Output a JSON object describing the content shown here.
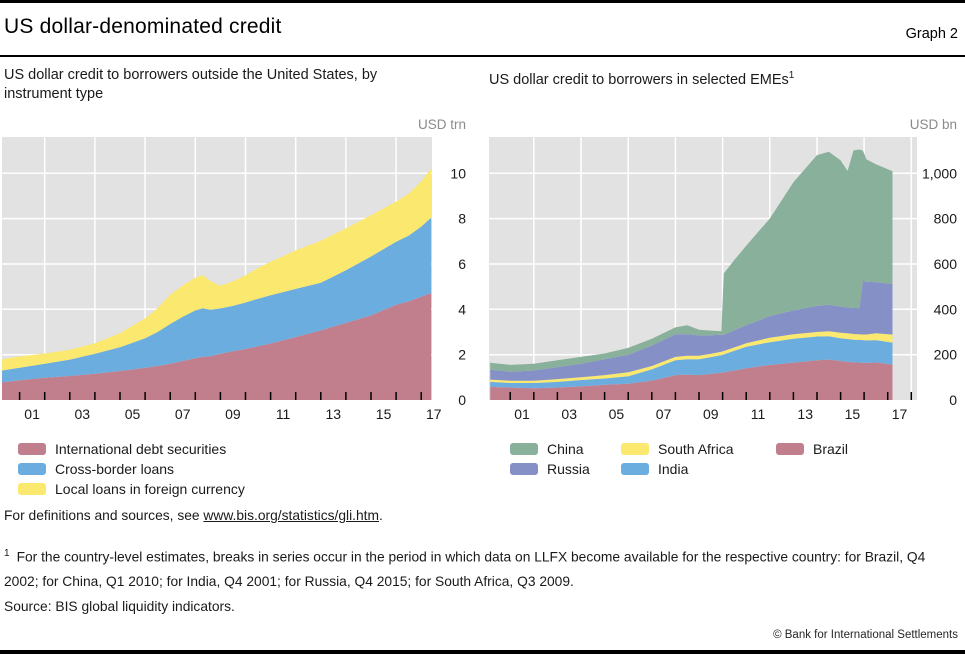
{
  "page": {
    "title": "US dollar-denominated credit",
    "graph_label": "Graph 2",
    "definitions_line": {
      "prefix": "For definitions and sources, see ",
      "link_text": "www.bis.org/statistics/gli.htm",
      "suffix": "."
    },
    "footnote": {
      "marker": "1",
      "text": "For the country-level estimates, breaks in series occur in the period in which data on LLFX become available for the respective country: for Brazil, Q4 2002; for China, Q1 2010; for India, Q4 2001; for Russia, Q4 2015; for South Africa, Q3 2009."
    },
    "source_line": "Source: BIS global liquidity indicators.",
    "copyright": "© Bank for International Settlements"
  },
  "colors": {
    "panel_background": "#e2e2e2",
    "gridline": "#ffffff",
    "tick": "#000000",
    "unit_text": "#8a8a8a"
  },
  "chart_data": [
    {
      "type": "area",
      "stacked": true,
      "title": "US dollar credit to borrowers outside the United States, by instrument type",
      "unit_label": "USD trn",
      "grid": true,
      "legend_position": "bottom-left",
      "ylim": [
        0,
        11.6
      ],
      "yticks": [
        0,
        2,
        4,
        6,
        8,
        10
      ],
      "ytick_labels": [
        "0",
        "2",
        "4",
        "6",
        "8",
        "10"
      ],
      "xtick_label_years": [
        2001,
        2003,
        2005,
        2007,
        2009,
        2011,
        2013,
        2015,
        2017
      ],
      "xtick_labels": [
        "01",
        "03",
        "05",
        "07",
        "09",
        "11",
        "13",
        "15",
        "17"
      ],
      "x": [
        2000.3,
        2001,
        2002,
        2003,
        2004,
        2005,
        2006,
        2006.5,
        2007,
        2007.5,
        2008,
        2008.3,
        2008.6,
        2009,
        2009.5,
        2010,
        2010.5,
        2011,
        2012,
        2013,
        2014,
        2015,
        2016,
        2016.5,
        2017,
        2017.4
      ],
      "series": [
        {
          "name": "International debt securities",
          "color": "#c17f8e",
          "values": [
            0.78,
            0.87,
            0.98,
            1.06,
            1.16,
            1.28,
            1.42,
            1.5,
            1.6,
            1.72,
            1.85,
            1.9,
            1.93,
            2.04,
            2.15,
            2.25,
            2.37,
            2.49,
            2.78,
            3.07,
            3.4,
            3.73,
            4.2,
            4.35,
            4.55,
            4.72
          ]
        },
        {
          "name": "Cross-border loans",
          "color": "#6badde",
          "values": [
            0.52,
            0.55,
            0.62,
            0.72,
            0.88,
            1.05,
            1.3,
            1.5,
            1.75,
            1.95,
            2.1,
            2.15,
            2.05,
            2.0,
            2.0,
            2.05,
            2.1,
            2.13,
            2.12,
            2.1,
            2.32,
            2.6,
            2.78,
            2.9,
            3.1,
            3.33
          ]
        },
        {
          "name": "Local loans in foreign currency",
          "color": "#fbe86f",
          "values": [
            0.5,
            0.5,
            0.45,
            0.44,
            0.46,
            0.62,
            0.88,
            1.05,
            1.3,
            1.38,
            1.45,
            1.45,
            1.27,
            1.0,
            1.08,
            1.2,
            1.35,
            1.48,
            1.7,
            1.85,
            1.85,
            1.82,
            1.77,
            1.85,
            2.0,
            2.15
          ]
        }
      ]
    },
    {
      "type": "area",
      "stacked": true,
      "title": "US dollar credit to borrowers in selected EMEs",
      "title_superscript": "1",
      "unit_label": "USD bn",
      "grid": true,
      "legend_position": "bottom-left",
      "ylim": [
        0,
        1160
      ],
      "yticks": [
        0,
        200,
        400,
        600,
        800,
        1000
      ],
      "ytick_labels": [
        "0",
        "200",
        "400",
        "600",
        "800",
        "1,000"
      ],
      "xtick_label_years": [
        2001,
        2003,
        2005,
        2007,
        2009,
        2011,
        2013,
        2015,
        2017
      ],
      "xtick_labels": [
        "01",
        "03",
        "05",
        "07",
        "09",
        "11",
        "13",
        "15",
        "17"
      ],
      "x": [
        2000.15,
        2001,
        2002,
        2003,
        2004,
        2005,
        2006,
        2007,
        2008,
        2008.5,
        2009,
        2009.5,
        2009.95,
        2010.05,
        2010.5,
        2011,
        2012,
        2013,
        2014,
        2014.5,
        2015,
        2015.3,
        2015.55,
        2015.8,
        2015.95,
        2016.1,
        2016.5,
        2017.2
      ],
      "series": [
        {
          "name": "Brazil",
          "color": "#c17f8e",
          "values": [
            58,
            55,
            52,
            55,
            60,
            67,
            72,
            85,
            110,
            112,
            110,
            115,
            120,
            122,
            130,
            140,
            155,
            165,
            175,
            178,
            172,
            169,
            166,
            165,
            164,
            163,
            166,
            156
          ]
        },
        {
          "name": "India",
          "color": "#6badde",
          "values": [
            22,
            20,
            23,
            25,
            28,
            28,
            33,
            50,
            65,
            68,
            70,
            74,
            78,
            79,
            87,
            95,
            100,
            105,
            105,
            103,
            100,
            100,
            100,
            100,
            100,
            100,
            98,
            97
          ]
        },
        {
          "name": "South Africa",
          "color": "#fbe86f",
          "values": [
            10,
            10,
            10,
            12,
            12,
            15,
            17,
            15,
            15,
            15,
            15,
            15,
            15,
            15,
            15,
            15,
            20,
            20,
            20,
            22,
            25,
            25,
            25,
            25,
            25,
            26,
            30,
            36
          ]
        },
        {
          "name": "Russia",
          "color": "#8590c6",
          "values": [
            43,
            40,
            45,
            53,
            60,
            70,
            78,
            90,
            100,
            95,
            90,
            82,
            75,
            72,
            76,
            80,
            95,
            105,
            115,
            117,
            115,
            114,
            115,
            115,
            240,
            232,
            226,
            222
          ]
        },
        {
          "name": "China",
          "color": "#89b09a",
          "values": [
            31,
            30,
            30,
            30,
            30,
            25,
            30,
            30,
            30,
            40,
            25,
            20,
            15,
            270,
            310,
            350,
            430,
            565,
            665,
            675,
            645,
            602,
            695,
            700,
            570,
            540,
            520,
            498
          ]
        }
      ]
    }
  ]
}
